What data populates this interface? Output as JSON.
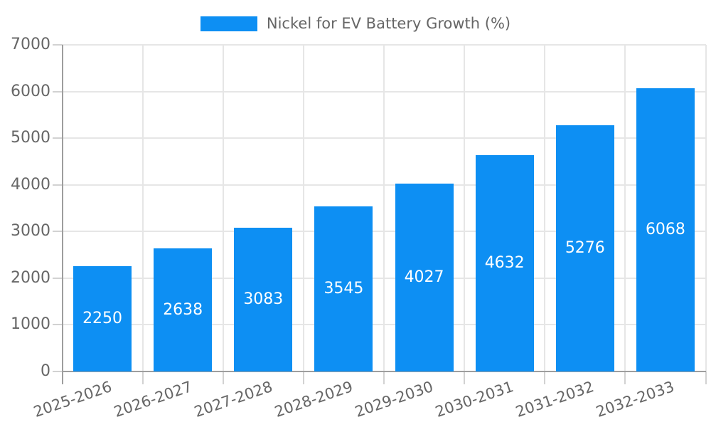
{
  "legend": {
    "label": "Nickel for EV Battery Growth (%)"
  },
  "chart_data": {
    "type": "bar",
    "title": "Nickel for EV Battery Growth (%)",
    "categories": [
      "2025-2026",
      "2026-2027",
      "2027-2028",
      "2028-2029",
      "2029-2030",
      "2030-2031",
      "2031-2032",
      "2032-2033"
    ],
    "values": [
      2250,
      2638,
      3083,
      3545,
      4027,
      4632,
      5276,
      6068
    ],
    "value_labels": [
      "2250",
      "2638",
      "3083",
      "3545",
      "4027",
      "4632",
      "5276",
      "6068"
    ],
    "xlabel": "",
    "ylabel": "",
    "ylim": [
      0,
      7000
    ],
    "yticks": [
      0,
      1000,
      2000,
      3000,
      4000,
      5000,
      6000,
      7000
    ],
    "ytick_labels": [
      "0",
      "1000",
      "2000",
      "3000",
      "4000",
      "5000",
      "6000",
      "7000"
    ],
    "grid": true,
    "value_labels_inside": true,
    "legend_position": "top-center"
  },
  "colors": {
    "bar": "#0d8ff3",
    "grid": "#e6e6e6",
    "axis": "#9e9e9e",
    "tick": "#d2d2d2",
    "axis_text": "#666666",
    "legend_text": "#666666",
    "value_text": "#ffffff",
    "background": "#ffffff"
  }
}
